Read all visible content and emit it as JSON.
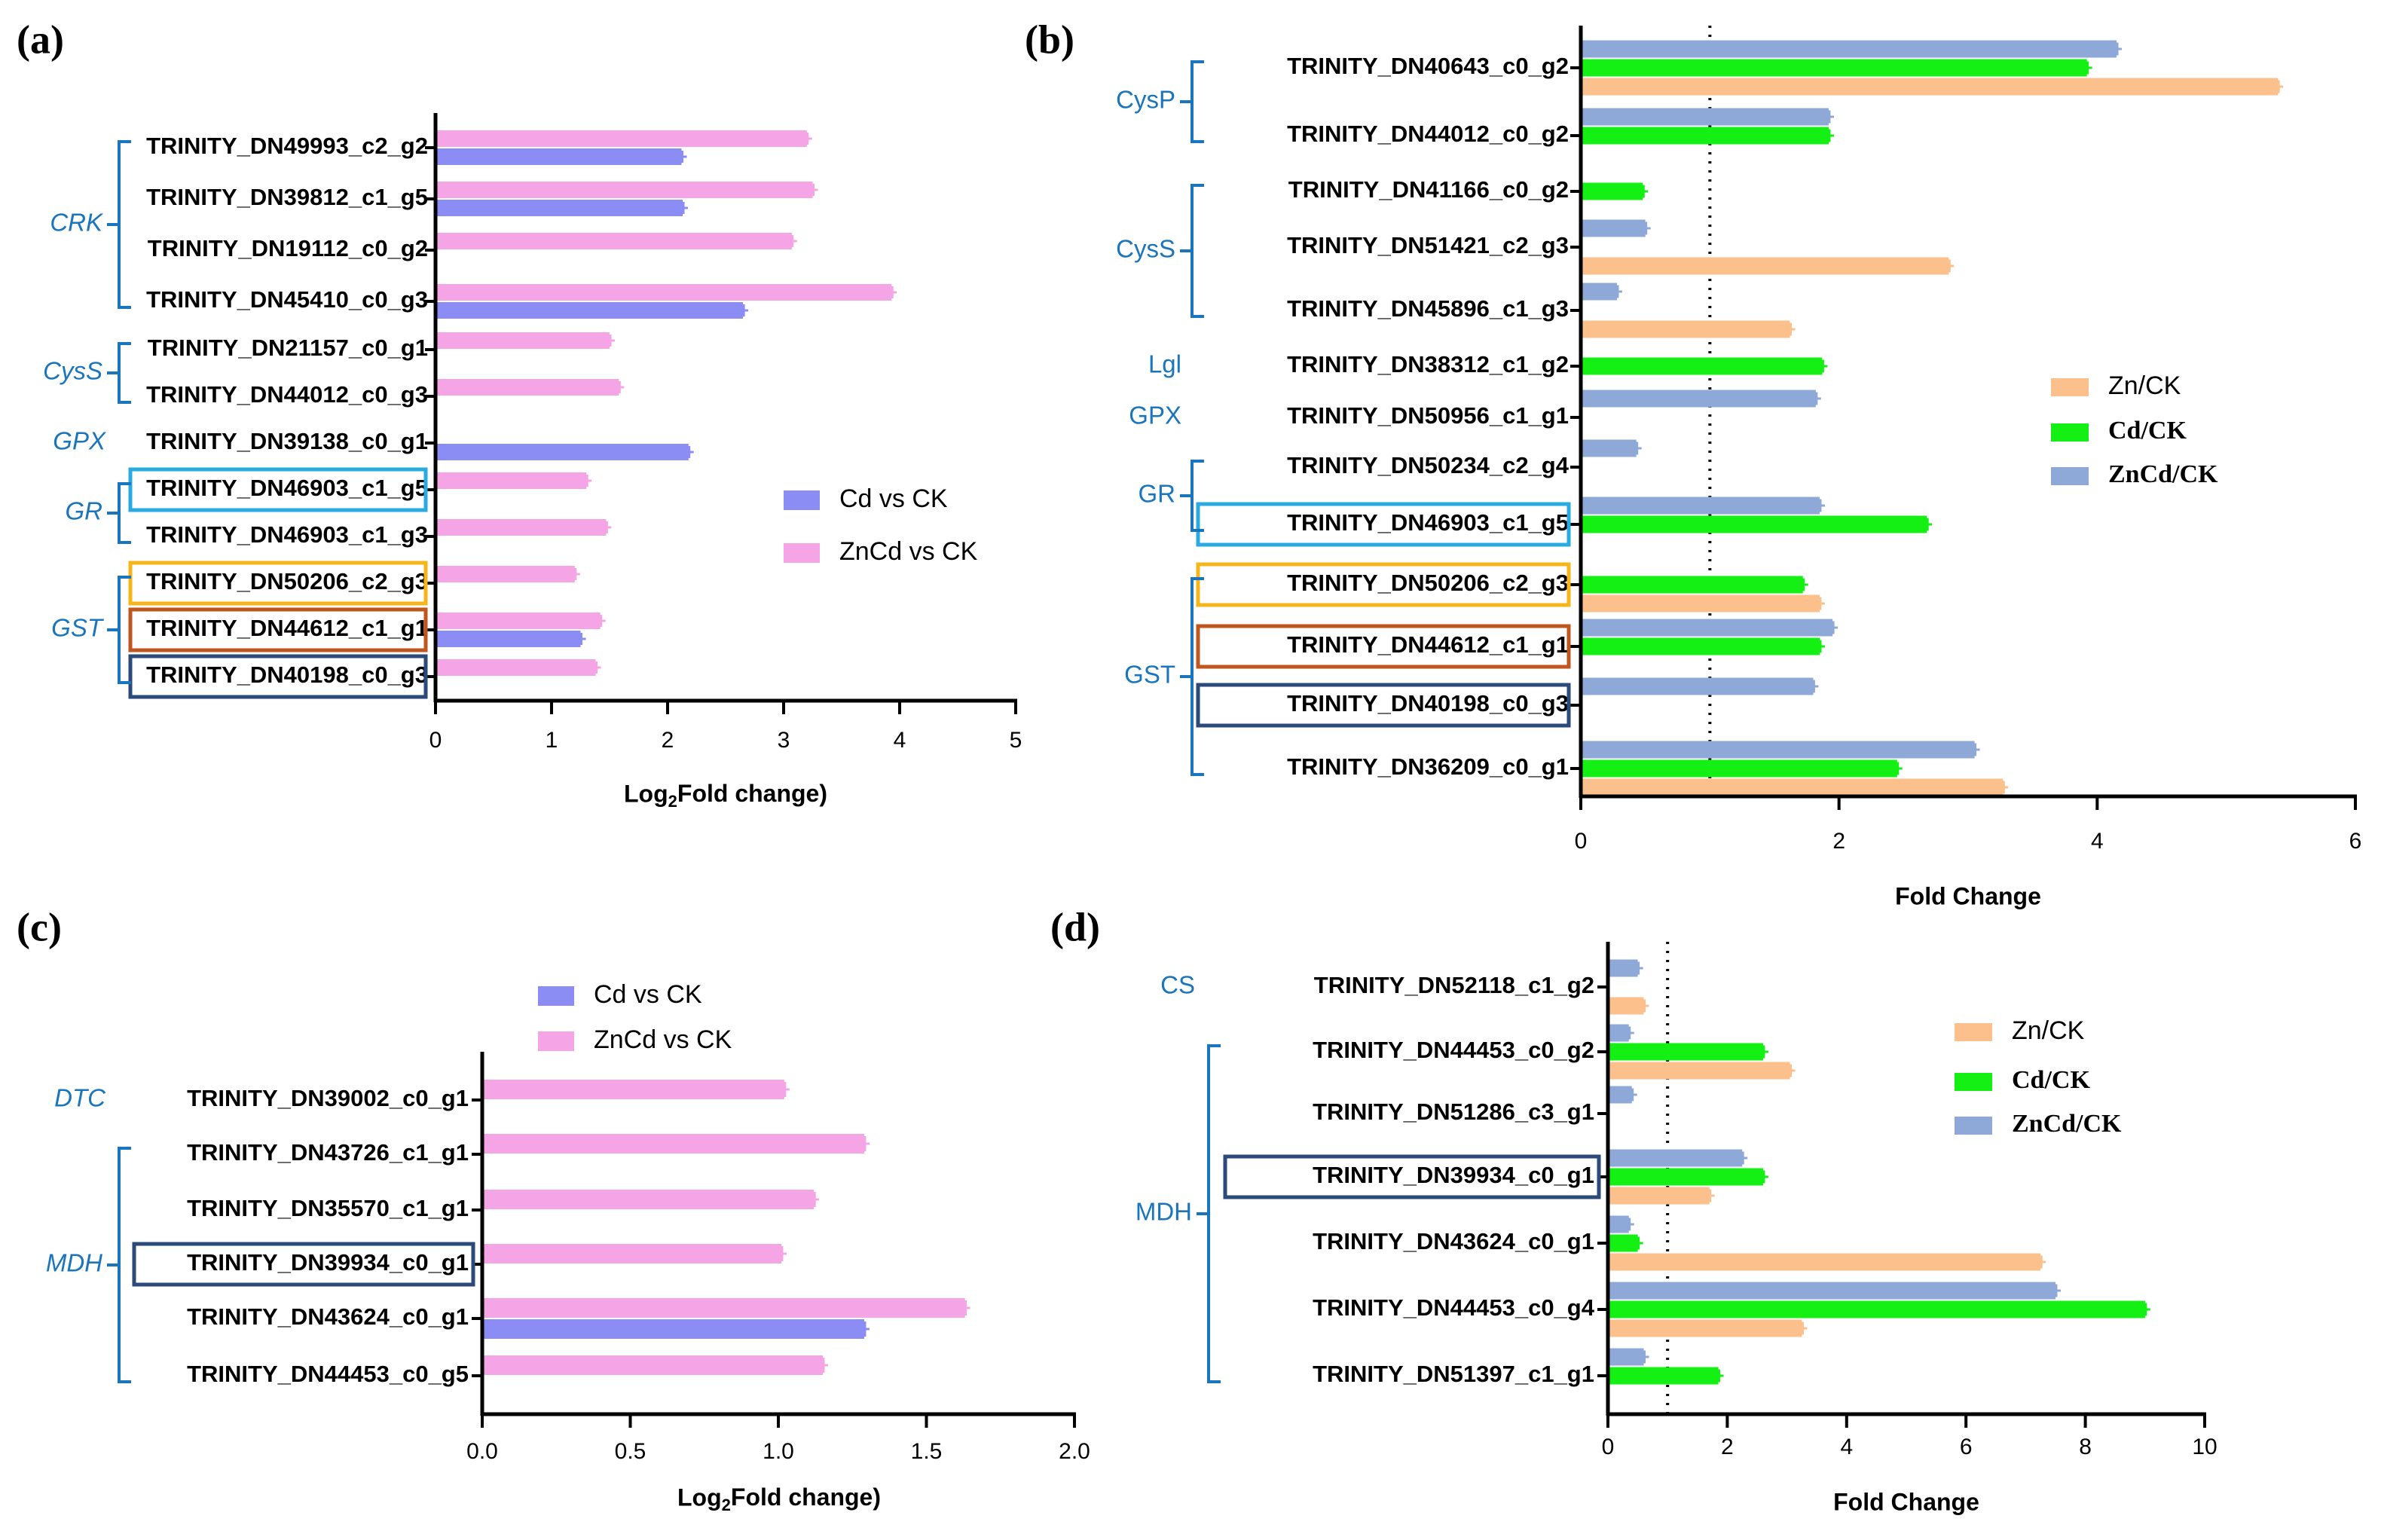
{
  "colors": {
    "cd_vs_ck": "#8c8cf5",
    "zncd_vs_ck": "#f5a5e6",
    "zn_ck": "#fcc08c",
    "cd_ck": "#14f014",
    "zncd_ck": "#8ea9d8",
    "group_label": "#1b75bc",
    "box_cyan": "#29abe2",
    "box_yellow": "#f7b51c",
    "box_brown": "#c0561e",
    "box_navy": "#2b4a7a"
  },
  "chart_data": [
    {
      "panel": "(a)",
      "type": "bar",
      "orientation": "horizontal",
      "xlabel": "Log2(Fold change)",
      "xlim": [
        0,
        5
      ],
      "xticks": [
        "0",
        "1",
        "2",
        "3",
        "4",
        "5"
      ],
      "legend": [
        "Cd vs CK",
        "ZnCd vs CK"
      ],
      "legend_position": "right-middle",
      "categories": [
        "TRINITY_DN49993_c2_g2",
        "TRINITY_DN39812_c1_g5",
        "TRINITY_DN19112_c0_g2",
        "TRINITY_DN45410_c0_g3",
        "TRINITY_DN21157_c0_g1",
        "TRINITY_DN44012_c0_g3",
        "TRINITY_DN39138_c0_g1",
        "TRINITY_DN46903_c1_g5",
        "TRINITY_DN46903_c1_g3",
        "TRINITY_DN50206_c2_g3",
        "TRINITY_DN44612_c1_g1",
        "TRINITY_DN40198_c0_g3"
      ],
      "series": [
        {
          "name": "ZnCd vs CK",
          "color_key": "zncd_vs_ck",
          "values": [
            3.2,
            3.25,
            3.07,
            3.93,
            1.5,
            1.58,
            null,
            1.3,
            1.47,
            1.2,
            1.42,
            1.38
          ]
        },
        {
          "name": "Cd vs CK",
          "color_key": "cd_vs_ck",
          "values": [
            2.12,
            2.13,
            null,
            2.65,
            null,
            null,
            2.18,
            null,
            null,
            null,
            1.25,
            null
          ]
        }
      ],
      "groups": [
        {
          "label": "CRK",
          "italic": true,
          "first": 0,
          "last": 3
        },
        {
          "label": "CysS",
          "italic": true,
          "first": 4,
          "last": 5
        },
        {
          "label": "GPX",
          "italic": true,
          "first": 6,
          "last": 6
        },
        {
          "label": "GR",
          "italic": true,
          "first": 7,
          "last": 8
        },
        {
          "label": "GST",
          "italic": true,
          "first": 9,
          "last": 11
        }
      ],
      "highlight_boxes": [
        {
          "row": 7,
          "color_key": "box_cyan"
        },
        {
          "row": 9,
          "color_key": "box_yellow"
        },
        {
          "row": 10,
          "color_key": "box_brown"
        },
        {
          "row": 11,
          "color_key": "box_navy"
        }
      ]
    },
    {
      "panel": "(b)",
      "type": "bar",
      "orientation": "horizontal",
      "xlabel": "Fold Change",
      "xlim": [
        0,
        6
      ],
      "xticks": [
        "0",
        "2",
        "4",
        "6"
      ],
      "reference_line": 1,
      "legend": [
        "Zn/CK",
        "Cd/CK",
        "ZnCd/CK"
      ],
      "legend_position": "right-middle",
      "categories": [
        "TRINITY_DN40643_c0_g2",
        "TRINITY_DN44012_c0_g2",
        "TRINITY_DN41166_c0_g2",
        "TRINITY_DN51421_c2_g3",
        "TRINITY_DN45896_c1_g3",
        "TRINITY_DN38312_c1_g2",
        "TRINITY_DN50956_c1_g1",
        "TRINITY_DN50234_c2_g4",
        "TRINITY_DN46903_c1_g5",
        "TRINITY_DN50206_c2_g3",
        "TRINITY_DN44612_c1_g1",
        "TRINITY_DN40198_c0_g3",
        "TRINITY_DN36209_c0_g1"
      ],
      "series": [
        {
          "name": "ZnCd/CK",
          "color_key": "zncd_ck",
          "values": [
            4.15,
            1.92,
            null,
            0.5,
            0.28,
            null,
            1.82,
            0.43,
            1.85,
            null,
            1.95,
            1.8,
            3.05
          ]
        },
        {
          "name": "Cd/CK",
          "color_key": "cd_ck",
          "values": [
            3.92,
            1.92,
            0.48,
            null,
            null,
            1.87,
            null,
            null,
            2.68,
            1.72,
            1.85,
            null,
            2.45
          ]
        },
        {
          "name": "Zn/CK",
          "color_key": "zn_ck",
          "values": [
            5.4,
            null,
            null,
            2.85,
            1.62,
            null,
            null,
            null,
            null,
            1.85,
            null,
            null,
            3.27
          ]
        }
      ],
      "groups": [
        {
          "label": "CysP",
          "italic": false,
          "first": 0,
          "last": 1
        },
        {
          "label": "CysS",
          "italic": false,
          "first": 2,
          "last": 4
        },
        {
          "label": "Lgl",
          "italic": false,
          "first": 5,
          "last": 5
        },
        {
          "label": "GPX",
          "italic": false,
          "first": 6,
          "last": 6
        },
        {
          "label": "GR",
          "italic": false,
          "first": 7,
          "last": 8
        },
        {
          "label": "GST",
          "italic": false,
          "first": 9,
          "last": 12
        }
      ],
      "highlight_boxes": [
        {
          "row": 8,
          "color_key": "box_cyan"
        },
        {
          "row": 9,
          "color_key": "box_yellow"
        },
        {
          "row": 10,
          "color_key": "box_brown"
        },
        {
          "row": 11,
          "color_key": "box_navy"
        }
      ]
    },
    {
      "panel": "(c)",
      "type": "bar",
      "orientation": "horizontal",
      "xlabel": "Log2(Fold change)",
      "xlim": [
        0,
        2
      ],
      "xticks": [
        "0.0",
        "0.5",
        "1.0",
        "1.5",
        "2.0"
      ],
      "legend": [
        "Cd vs CK",
        "ZnCd vs CK"
      ],
      "legend_position": "top-middle",
      "categories": [
        "TRINITY_DN39002_c0_g1",
        "TRINITY_DN43726_c1_g1",
        "TRINITY_DN35570_c1_g1",
        "TRINITY_DN39934_c0_g1",
        "TRINITY_DN43624_c0_g1",
        "TRINITY_DN44453_c0_g5"
      ],
      "series": [
        {
          "name": "ZnCd vs CK",
          "color_key": "zncd_vs_ck",
          "values": [
            1.02,
            1.29,
            1.12,
            1.01,
            1.63,
            1.15
          ]
        },
        {
          "name": "Cd vs CK",
          "color_key": "cd_vs_ck",
          "values": [
            null,
            null,
            null,
            null,
            1.29,
            null
          ]
        }
      ],
      "groups": [
        {
          "label": "DTC",
          "italic": true,
          "first": 0,
          "last": 0
        },
        {
          "label": "MDH",
          "italic": true,
          "first": 1,
          "last": 5
        }
      ],
      "highlight_boxes": [
        {
          "row": 3,
          "color_key": "box_navy"
        }
      ]
    },
    {
      "panel": "(d)",
      "type": "bar",
      "orientation": "horizontal",
      "xlabel": "Fold Change",
      "xlim": [
        0,
        10
      ],
      "xticks": [
        "0",
        "2",
        "4",
        "6",
        "8",
        "10"
      ],
      "reference_line": 1,
      "legend": [
        "Zn/CK",
        "Cd/CK",
        "ZnCd/CK"
      ],
      "legend_position": "right-top",
      "categories": [
        "TRINITY_DN52118_c1_g2",
        "TRINITY_DN44453_c0_g2",
        "TRINITY_DN51286_c3_g1",
        "TRINITY_DN39934_c0_g1",
        "TRINITY_DN43624_c0_g1",
        "TRINITY_DN44453_c0_g4",
        "TRINITY_DN51397_c1_g1"
      ],
      "series": [
        {
          "name": "ZnCd/CK",
          "color_key": "zncd_ck",
          "values": [
            0.5,
            0.35,
            0.4,
            2.25,
            0.35,
            7.5,
            0.6
          ]
        },
        {
          "name": "Cd/CK",
          "color_key": "cd_ck",
          "values": [
            null,
            2.6,
            null,
            2.6,
            0.5,
            9.0,
            1.85
          ]
        },
        {
          "name": "Zn/CK",
          "color_key": "zn_ck",
          "values": [
            0.6,
            3.05,
            null,
            1.7,
            7.25,
            3.25,
            null
          ]
        }
      ],
      "groups": [
        {
          "label": "CS",
          "italic": false,
          "first": 0,
          "last": 0
        },
        {
          "label": "MDH",
          "italic": false,
          "first": 1,
          "last": 6
        }
      ],
      "highlight_boxes": [
        {
          "row": 3,
          "color_key": "box_navy"
        }
      ]
    }
  ]
}
